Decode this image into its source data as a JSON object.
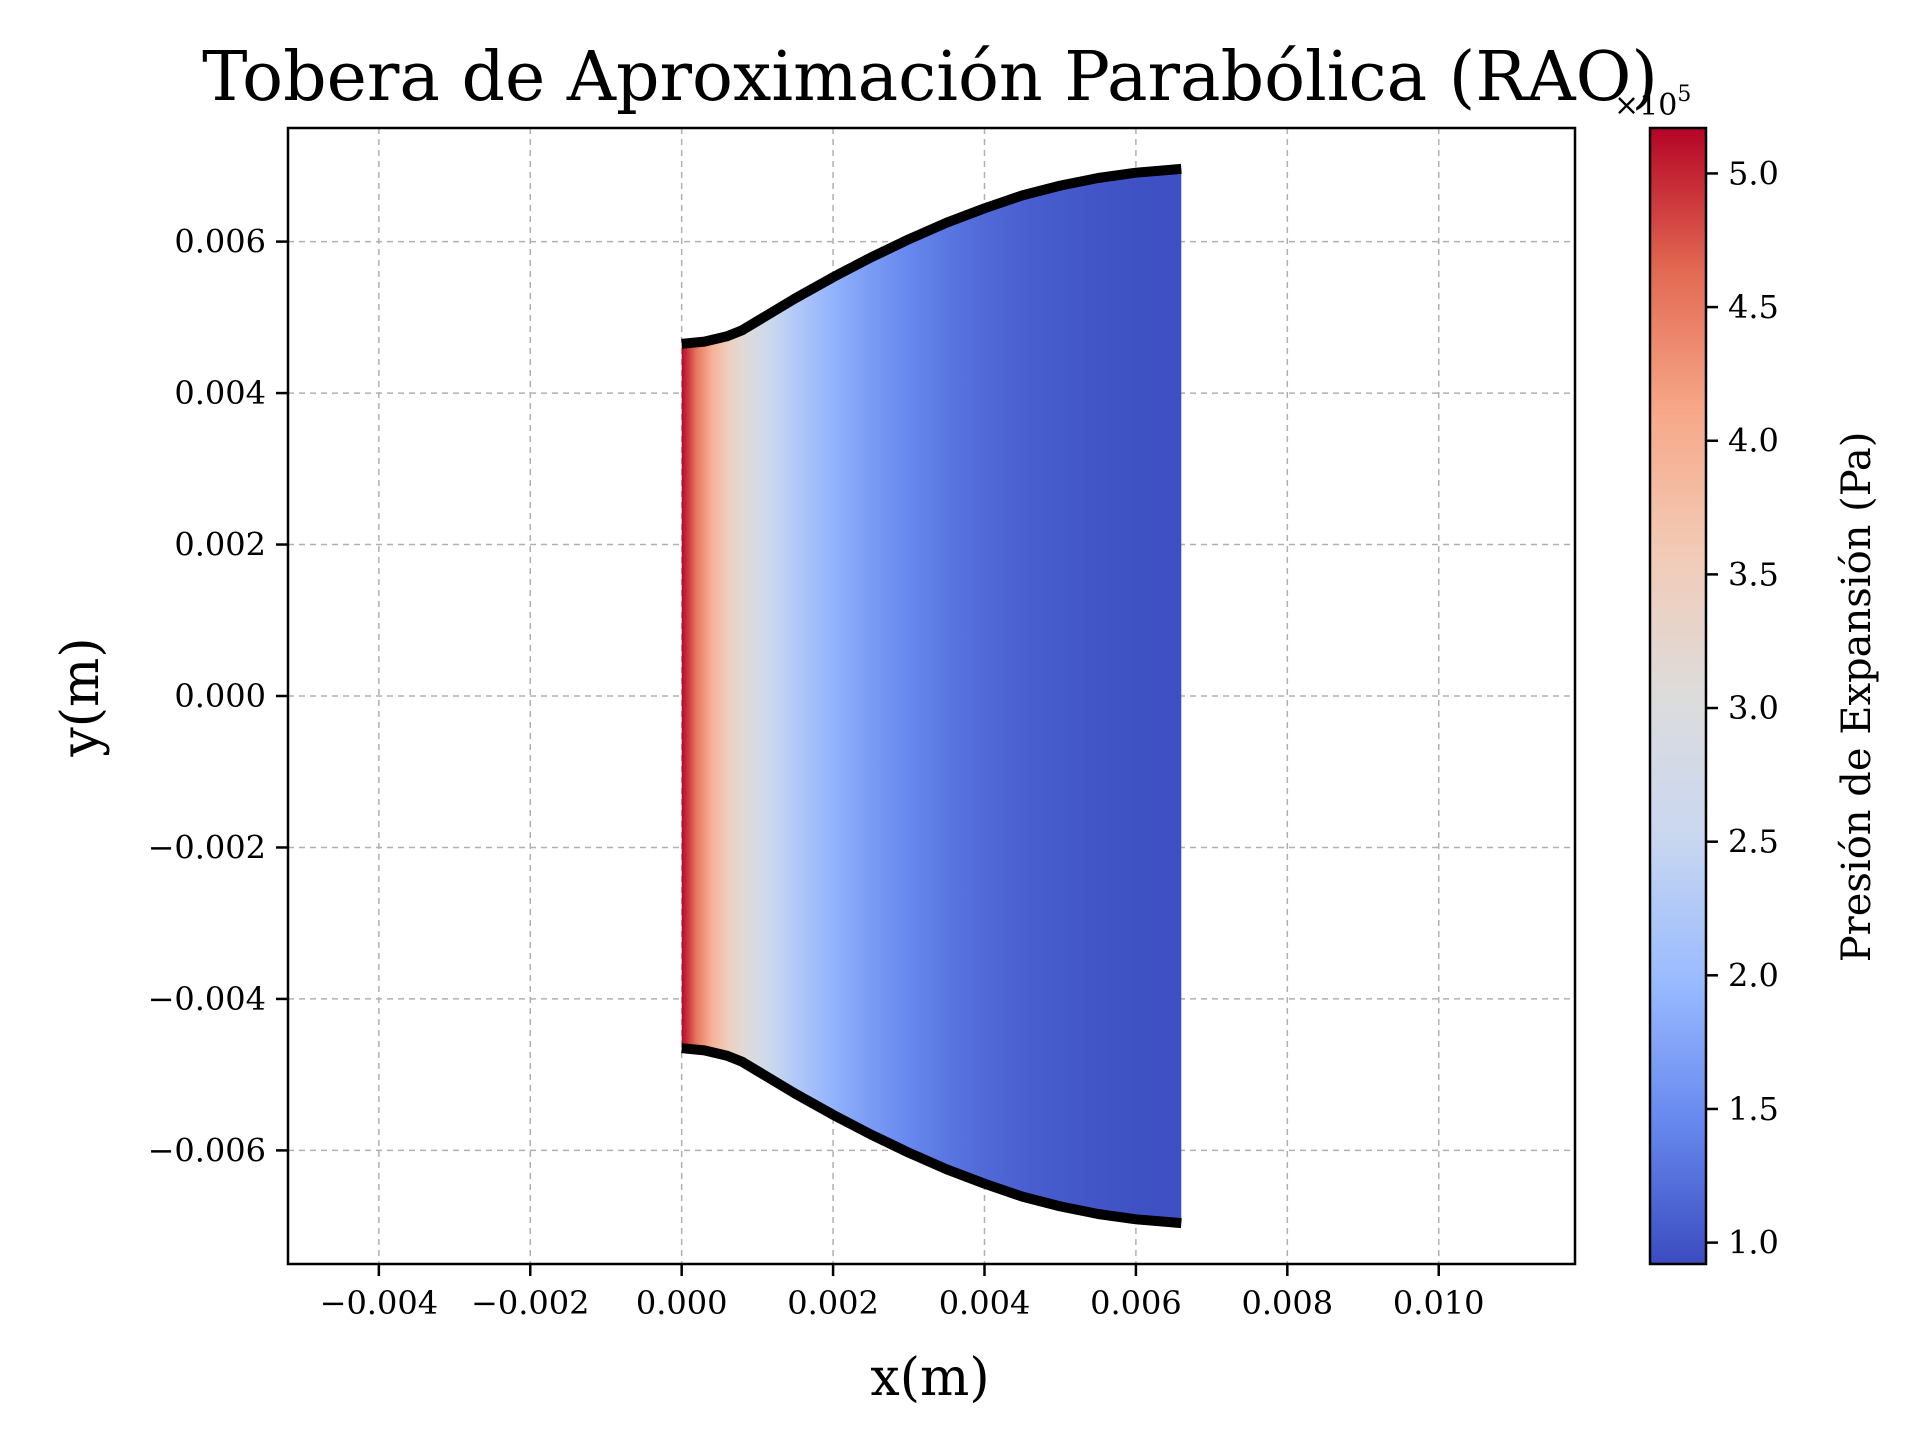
{
  "chart_data": {
    "type": "heatmap",
    "title": "Tobera de Aproximación Parabólica (RAO)",
    "xlabel": "x(m)",
    "ylabel": "y(m)",
    "xlim": [
      -0.0052,
      0.0118
    ],
    "ylim": [
      -0.0075,
      0.0075
    ],
    "xticks": [
      -0.004,
      -0.002,
      0.0,
      0.002,
      0.004,
      0.006,
      0.008,
      0.01
    ],
    "xtick_labels": [
      "−0.004",
      "−0.002",
      "0.000",
      "0.002",
      "0.004",
      "0.006",
      "0.008",
      "0.010"
    ],
    "yticks": [
      0.006,
      0.004,
      0.002,
      0.0,
      -0.002,
      -0.004,
      -0.006
    ],
    "ytick_labels": [
      "0.006",
      "0.004",
      "0.002",
      "0.000",
      "−0.002",
      "−0.004",
      "−0.006"
    ],
    "grid": true,
    "colormap": "coolwarm",
    "colormap_stops": [
      "#3b4cc0",
      "#6788ee",
      "#9abbff",
      "#c9d7f0",
      "#dddcdc",
      "#f2cbb7",
      "#f7a889",
      "#e26952",
      "#b40426"
    ],
    "nozzle_wall": {
      "x": [
        0.0,
        0.0003,
        0.0006,
        0.0008,
        0.001,
        0.0015,
        0.002,
        0.0025,
        0.003,
        0.0035,
        0.004,
        0.0045,
        0.005,
        0.0055,
        0.006,
        0.0066
      ],
      "y": [
        0.00465,
        0.00468,
        0.00475,
        0.00483,
        0.00495,
        0.00525,
        0.00553,
        0.00579,
        0.00603,
        0.00625,
        0.00644,
        0.00661,
        0.00674,
        0.00684,
        0.00691,
        0.00696
      ]
    },
    "pressure_profile": {
      "x": [
        0.0,
        0.0001,
        0.0002,
        0.0004,
        0.0006,
        0.0008,
        0.001,
        0.0012,
        0.0015,
        0.002,
        0.0025,
        0.003,
        0.0035,
        0.004,
        0.0045,
        0.005,
        0.0055,
        0.006,
        0.0066
      ],
      "values": [
        515000,
        485000,
        450000,
        395000,
        350000,
        315000,
        285000,
        255000,
        225000,
        190000,
        165000,
        145000,
        130000,
        118000,
        110000,
        104000,
        100000,
        97000,
        95000
      ]
    },
    "colorbar": {
      "label": "Presión de Expansión (Pa)",
      "multiplier": "×10",
      "multiplier_exp": "5",
      "vmin": 92000,
      "vmax": 517000,
      "ticks": [
        100000,
        150000,
        200000,
        250000,
        300000,
        350000,
        400000,
        450000,
        500000
      ],
      "tick_labels": [
        "1.0",
        "1.5",
        "2.0",
        "2.5",
        "3.0",
        "3.5",
        "4.0",
        "4.5",
        "5.0"
      ]
    }
  }
}
